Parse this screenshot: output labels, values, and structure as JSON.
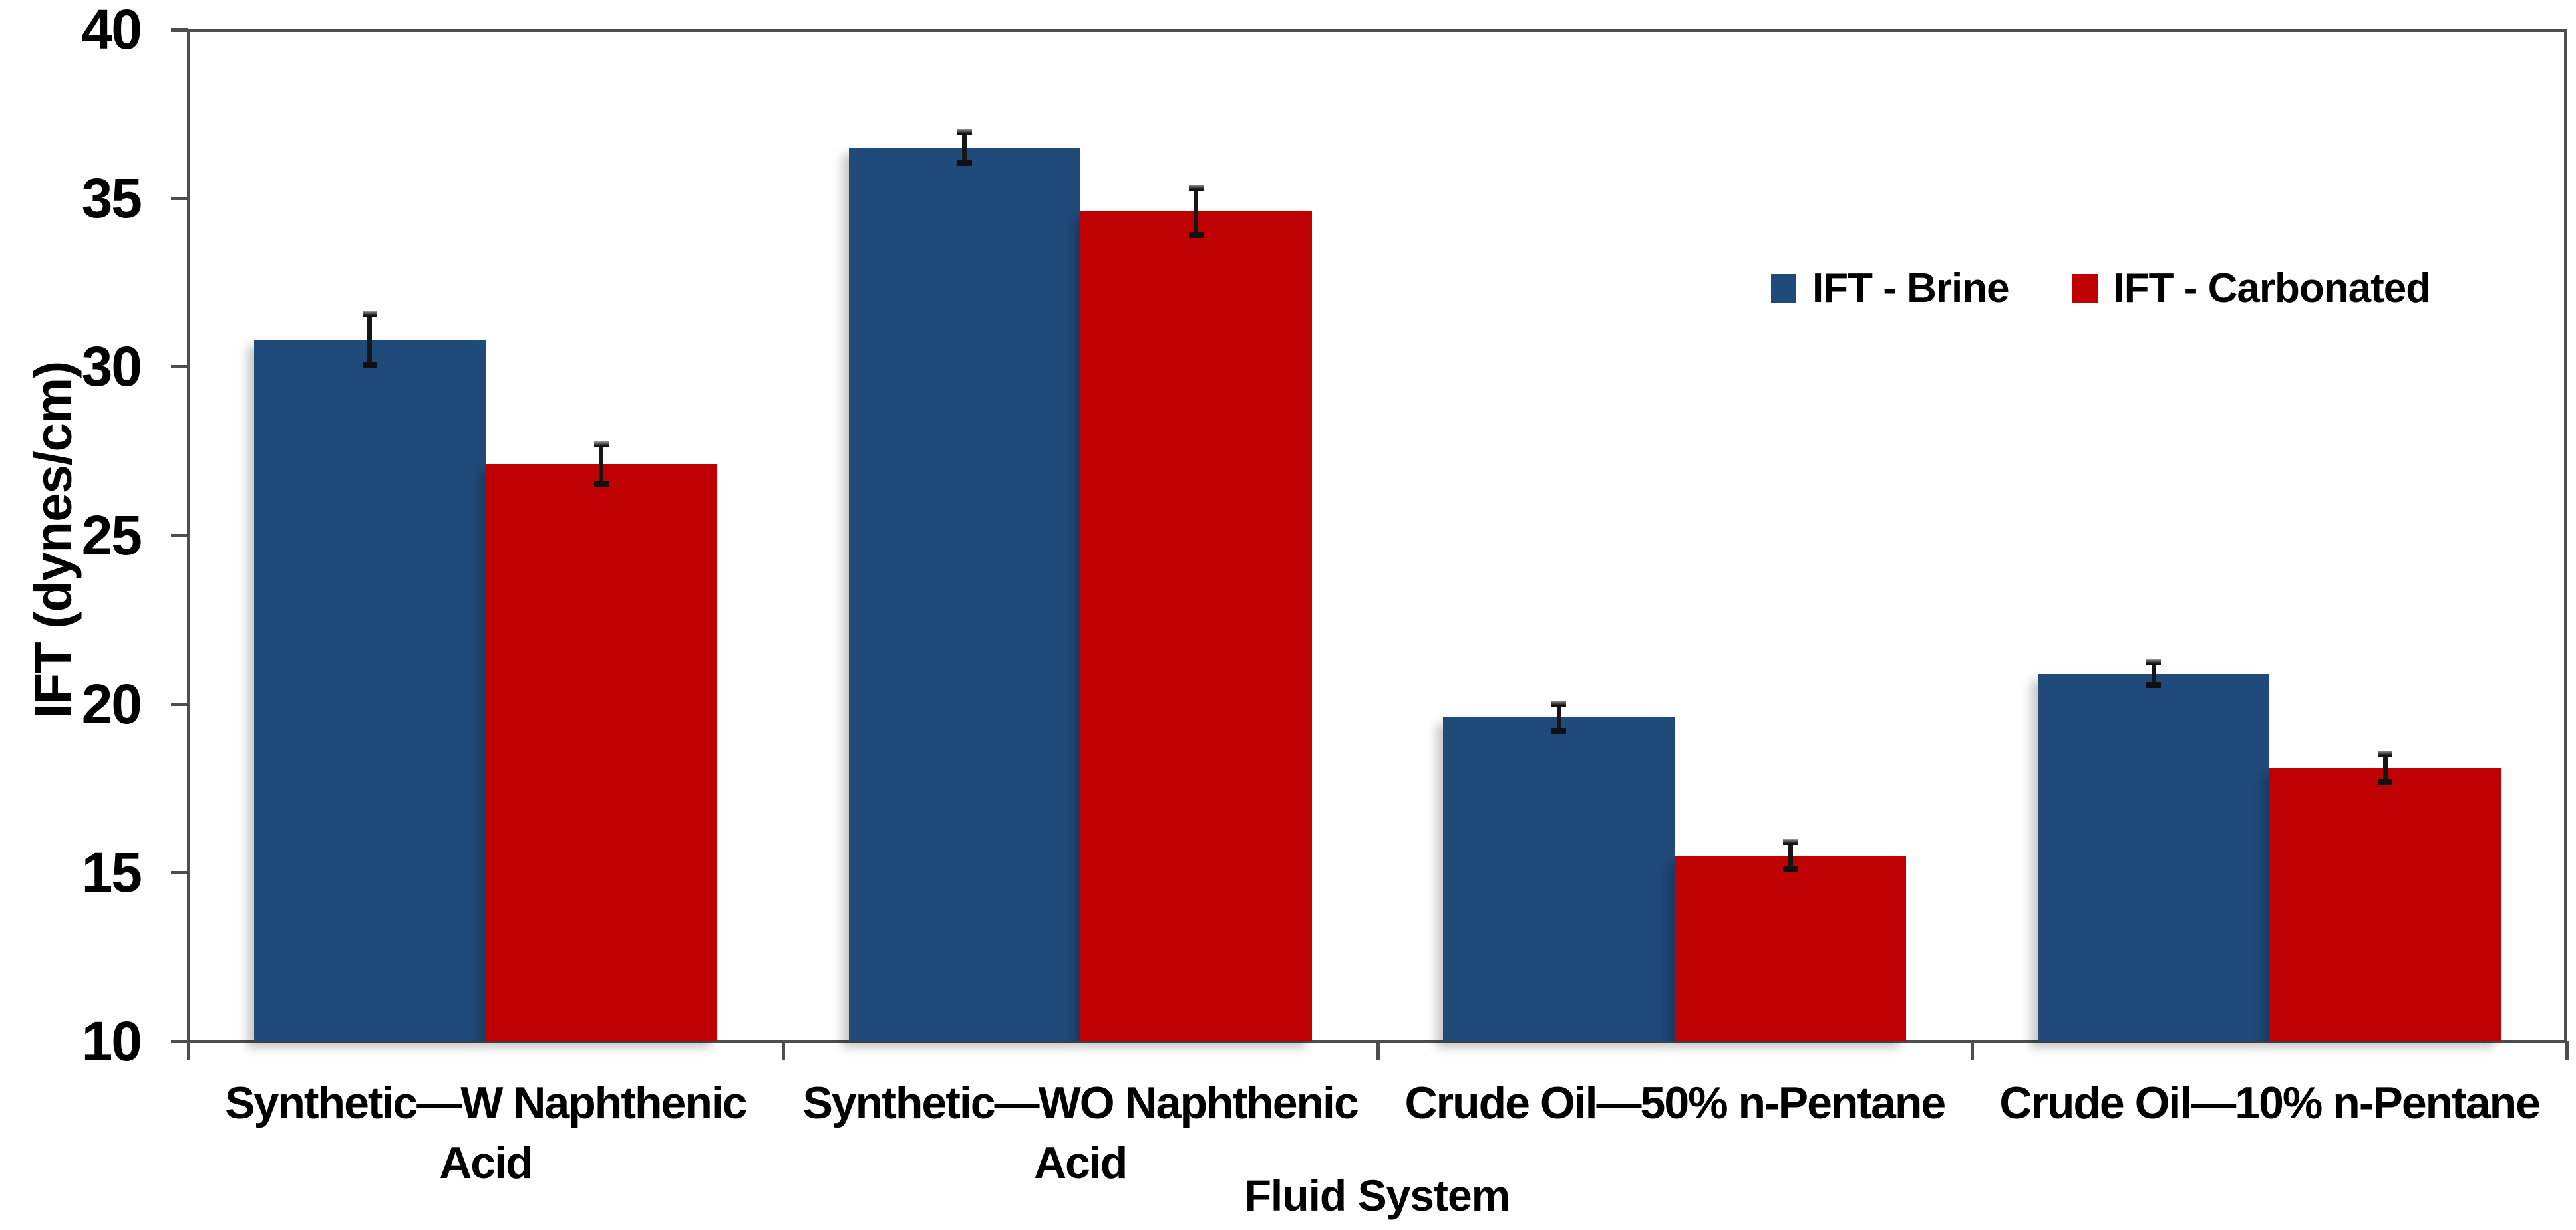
{
  "chart_data": {
    "type": "bar",
    "title": "",
    "xlabel": "Fluid System",
    "ylabel": "IFT (dynes/cm)",
    "ylim": [
      10,
      40
    ],
    "yticks": [
      10,
      15,
      20,
      25,
      30,
      35,
      40
    ],
    "grid": false,
    "legend_position": "upper-right-inside",
    "categories": [
      "Synthetic—W Naphthenic\nAcid",
      "Synthetic—WO Naphthenic\nAcid",
      "Crude Oil—50% n-Pentane",
      "Crude Oil—10% n-Pentane"
    ],
    "series": [
      {
        "name": "IFT - Brine",
        "color": "#204A7A",
        "values": [
          30.8,
          36.5,
          19.6,
          20.9
        ],
        "errors": [
          0.7,
          0.4,
          0.35,
          0.3
        ]
      },
      {
        "name": "IFT - Carbonated",
        "color": "#C00103",
        "values": [
          27.1,
          34.6,
          15.5,
          18.1
        ],
        "errors": [
          0.55,
          0.65,
          0.35,
          0.38
        ]
      }
    ]
  }
}
